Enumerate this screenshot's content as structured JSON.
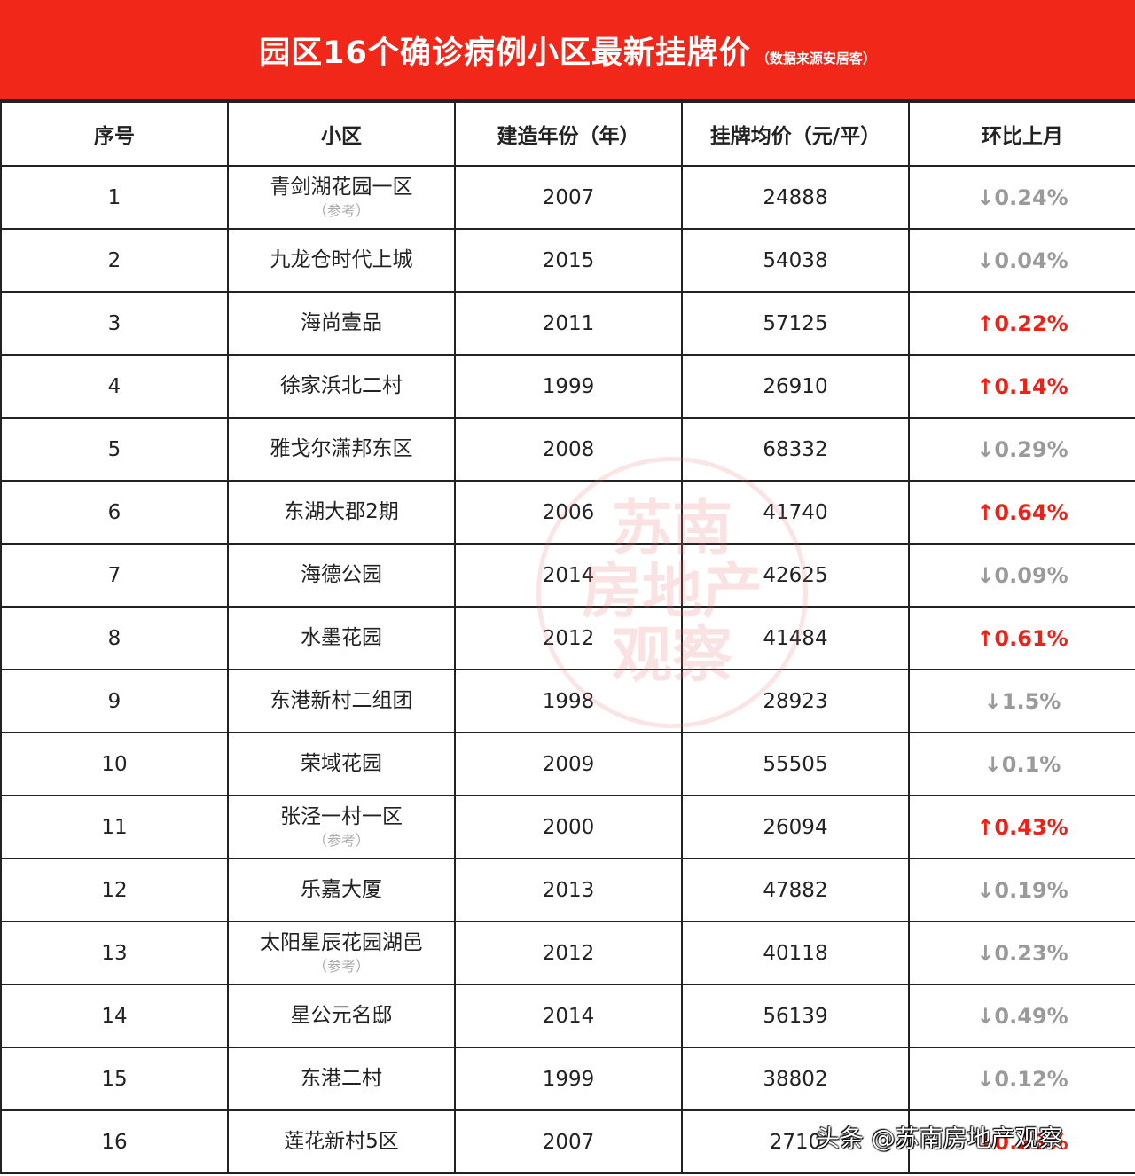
{
  "title": {
    "main": "园区16个确诊病例小区最新挂牌价",
    "source": "（数据来源安居客）"
  },
  "columns": [
    "序号",
    "小区",
    "建造年份（年）",
    "挂牌均价（元/平）",
    "环比上月"
  ],
  "rows": [
    {
      "no": "1",
      "name": "青剑湖花园一区",
      "note": "（参考）",
      "year": "2007",
      "price": "24888",
      "change": "↓0.24%",
      "direction": "down"
    },
    {
      "no": "2",
      "name": "九龙仓时代上城",
      "note": "",
      "year": "2015",
      "price": "54038",
      "change": "↓0.04%",
      "direction": "down"
    },
    {
      "no": "3",
      "name": "海尚壹品",
      "note": "",
      "year": "2011",
      "price": "57125",
      "change": "↑0.22%",
      "direction": "up"
    },
    {
      "no": "4",
      "name": "徐家浜北二村",
      "note": "",
      "year": "1999",
      "price": "26910",
      "change": "↑0.14%",
      "direction": "up"
    },
    {
      "no": "5",
      "name": "雅戈尔潇邦东区",
      "note": "",
      "year": "2008",
      "price": "68332",
      "change": "↓0.29%",
      "direction": "down"
    },
    {
      "no": "6",
      "name": "东湖大郡2期",
      "note": "",
      "year": "2006",
      "price": "41740",
      "change": "↑0.64%",
      "direction": "up"
    },
    {
      "no": "7",
      "name": "海德公园",
      "note": "",
      "year": "2014",
      "price": "42625",
      "change": "↓0.09%",
      "direction": "down"
    },
    {
      "no": "8",
      "name": "水墨花园",
      "note": "",
      "year": "2012",
      "price": "41484",
      "change": "↑0.61%",
      "direction": "up"
    },
    {
      "no": "9",
      "name": "东港新村二组团",
      "note": "",
      "year": "1998",
      "price": "28923",
      "change": "↓1.5%",
      "direction": "down"
    },
    {
      "no": "10",
      "name": "荣域花园",
      "note": "",
      "year": "2009",
      "price": "55505",
      "change": "↓0.1%",
      "direction": "down"
    },
    {
      "no": "11",
      "name": "张泾一村一区",
      "note": "（参考）",
      "year": "2000",
      "price": "26094",
      "change": "↑0.43%",
      "direction": "up"
    },
    {
      "no": "12",
      "name": "乐嘉大厦",
      "note": "",
      "year": "2013",
      "price": "47882",
      "change": "↓0.19%",
      "direction": "down"
    },
    {
      "no": "13",
      "name": "太阳星辰花园湖邑",
      "note": "（参考）",
      "year": "2012",
      "price": "40118",
      "change": "↓0.23%",
      "direction": "down"
    },
    {
      "no": "14",
      "name": "星公元名邸",
      "note": "",
      "year": "2014",
      "price": "56139",
      "change": "↓0.49%",
      "direction": "down"
    },
    {
      "no": "15",
      "name": "东港二村",
      "note": "",
      "year": "1999",
      "price": "38802",
      "change": "↓0.12%",
      "direction": "down"
    },
    {
      "no": "16",
      "name": "莲花新村5区",
      "note": "",
      "year": "2007",
      "price": "2710",
      "change": "↑0.23%",
      "direction": "up"
    }
  ],
  "watermark": {
    "lines": [
      "苏南",
      "房地产",
      "观察"
    ]
  },
  "footer_mark": "头条 @苏南房地产观察",
  "colors": {
    "header_red": "#f1271a",
    "up_red": "#f02016",
    "down_gray": "#9a9a9a"
  }
}
